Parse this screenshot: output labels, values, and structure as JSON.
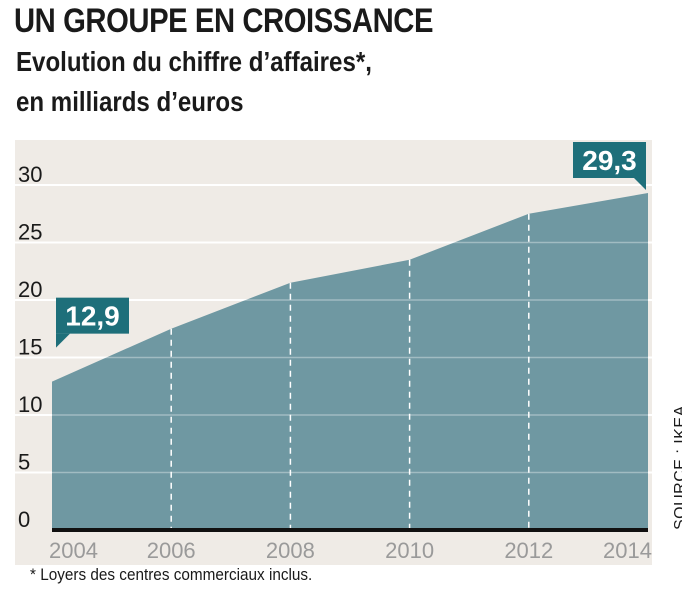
{
  "header": {
    "title": "UN GROUPE EN CROISSANCE",
    "subtitle_line1": "Evolution du chiffre d’affaires*,",
    "subtitle_line2": "en milliards d’euros"
  },
  "footnote": "* Loyers des centres commerciaux inclus.",
  "source": "SOURCE : IKEA",
  "colors": {
    "background": "#efebe6",
    "area": "#6f98a2",
    "label_bg": "#1e6f7a",
    "gridline": "#ffffff",
    "axis": "#111111",
    "tick_year": "#9a9a9a"
  },
  "chart_data": {
    "type": "area",
    "title": "Evolution du chiffre d’affaires*, en milliards d’euros",
    "xlabel": "",
    "ylabel": "",
    "x": [
      2004,
      2006,
      2008,
      2010,
      2012,
      2014
    ],
    "values": [
      12.9,
      17.5,
      21.5,
      23.5,
      27.5,
      29.3
    ],
    "ylim": [
      0,
      33
    ],
    "yticks": [
      0,
      5,
      10,
      15,
      20,
      25,
      30
    ],
    "xticks": [
      "2004",
      "2006",
      "2008",
      "2010",
      "2012",
      "2014"
    ],
    "grid": true,
    "annotations": [
      {
        "index": 0,
        "text": "12,9"
      },
      {
        "index": 5,
        "text": "29,3"
      }
    ]
  }
}
